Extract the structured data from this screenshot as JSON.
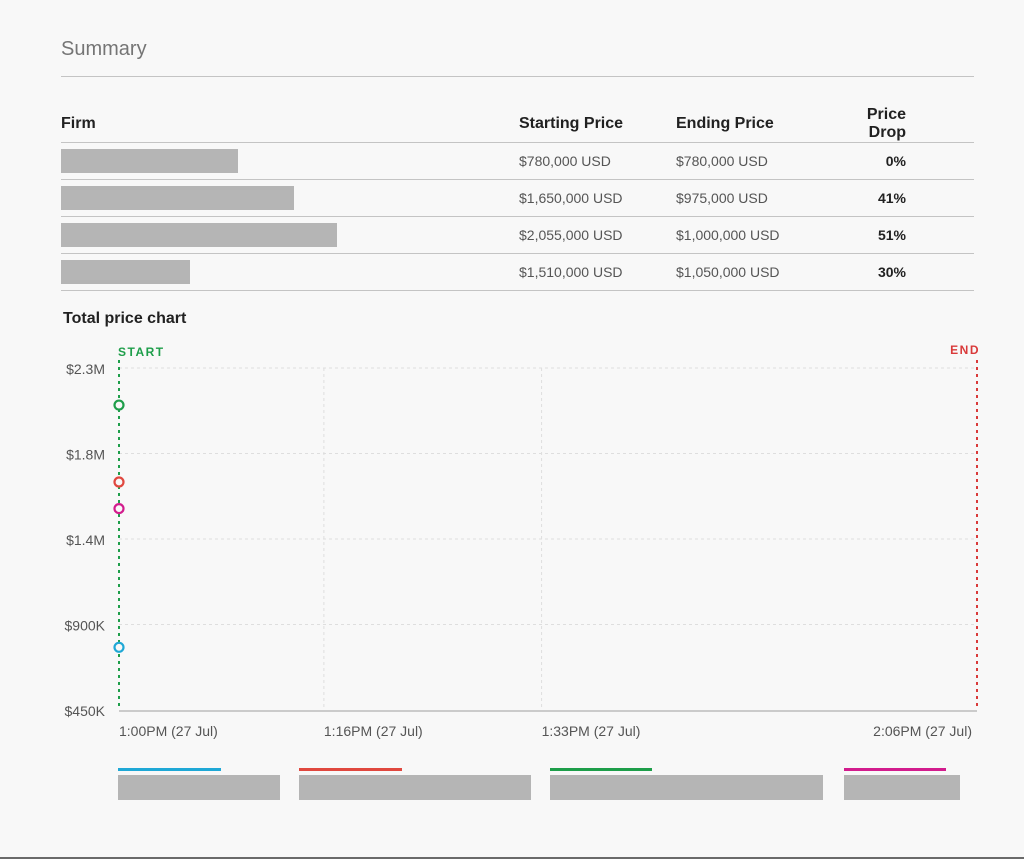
{
  "summary": {
    "title": "Summary"
  },
  "table": {
    "headers": [
      "Firm",
      "Starting Price",
      "Ending Price",
      "Price Drop"
    ],
    "rows": [
      {
        "firm": "",
        "start": "$780,000 USD",
        "end": "$780,000 USD",
        "drop": "0%"
      },
      {
        "firm": "",
        "start": "$1,650,000 USD",
        "end": "$975,000 USD",
        "drop": "41%"
      },
      {
        "firm": "",
        "start": "$2,055,000 USD",
        "end": "$1,000,000 USD",
        "drop": "51%"
      },
      {
        "firm": "",
        "start": "$1,510,000 USD",
        "end": "$1,050,000 USD",
        "drop": "30%"
      }
    ]
  },
  "chart_title": "Total price chart",
  "chart_data": {
    "type": "scatter",
    "title": "Total price chart",
    "start_label": "START",
    "end_label": "END",
    "x_ticks": [
      "1:00PM (27 Jul)",
      "1:16PM (27 Jul)",
      "1:33PM (27 Jul)",
      "2:06PM (27 Jul)"
    ],
    "x_tick_minutes": [
      0,
      16,
      33,
      66
    ],
    "x_range_minutes": [
      0,
      67
    ],
    "y_ticks": [
      "$450K",
      "$900K",
      "$1.4M",
      "$1.8M",
      "$2.3M"
    ],
    "y_tick_values": [
      450000,
      900000,
      1350000,
      1800000,
      2250000
    ],
    "ylim": [
      450000,
      2250000
    ],
    "grid": true,
    "legend_position": "bottom",
    "series": [
      {
        "color": "#1fa8d6",
        "points": [
          {
            "x": "1:00PM (27 Jul)",
            "y": 780000
          }
        ]
      },
      {
        "color": "#e0483f",
        "points": [
          {
            "x": "1:00PM (27 Jul)",
            "y": 1650000
          }
        ]
      },
      {
        "color": "#1e9e4a",
        "points": [
          {
            "x": "1:00PM (27 Jul)",
            "y": 2055000
          }
        ]
      },
      {
        "color": "#d21c8d",
        "points": [
          {
            "x": "1:00PM (27 Jul)",
            "y": 1510000
          }
        ]
      }
    ],
    "start_color": "#1e9e4a",
    "end_color": "#d93a3a"
  }
}
